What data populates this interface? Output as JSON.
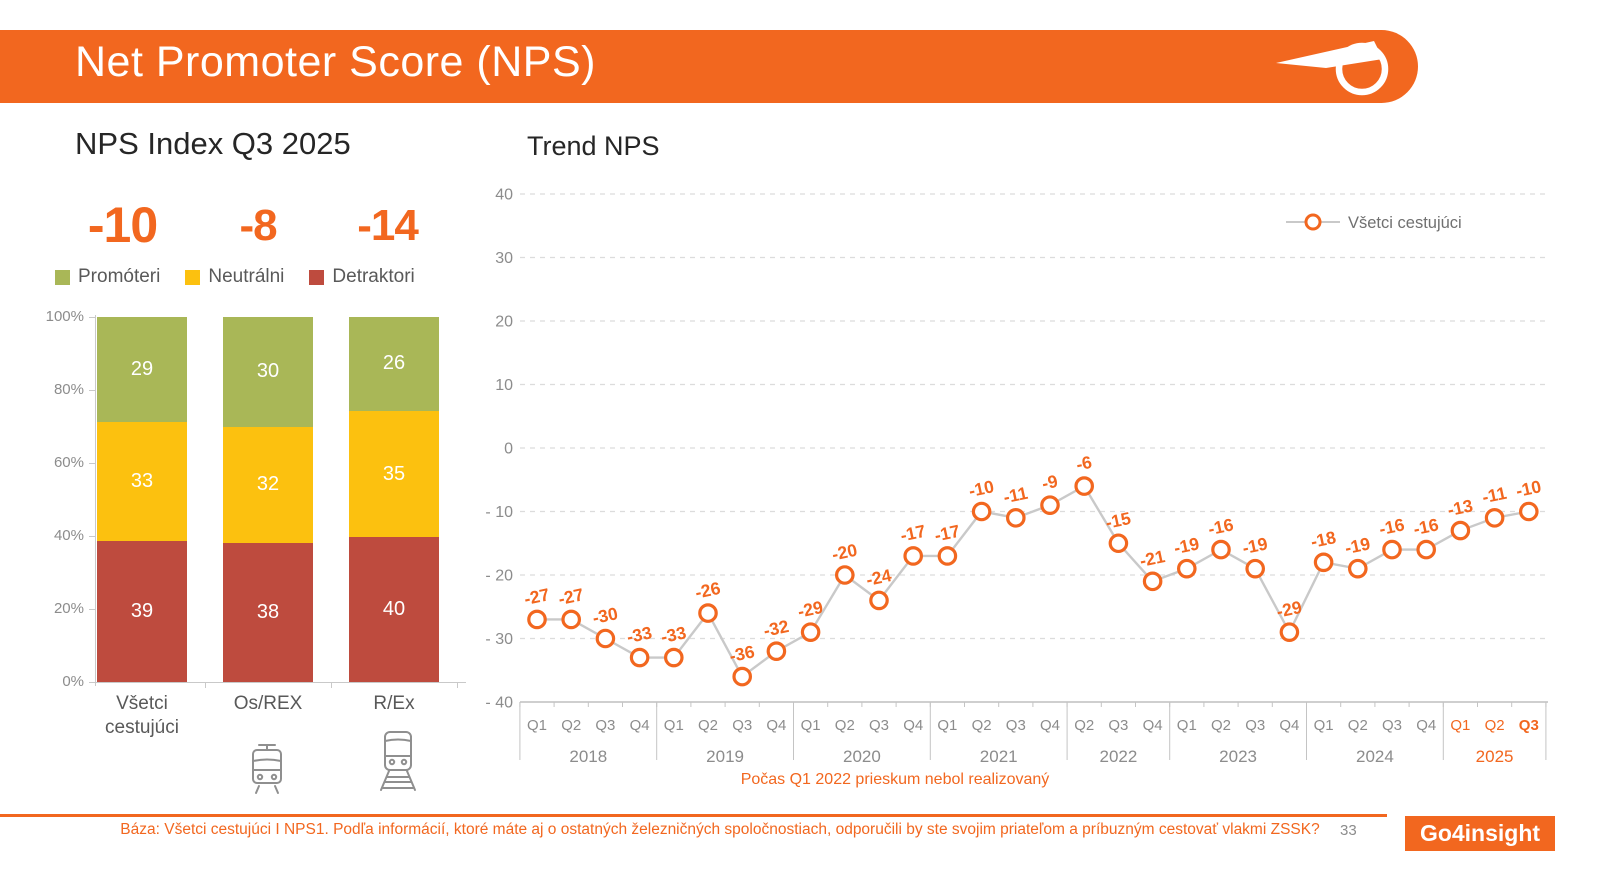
{
  "header": {
    "title": "Net Promoter Score (NPS)",
    "logo": "zssk-swoosh-logo"
  },
  "colors": {
    "accent_orange": "#F2671F",
    "promoters_green": "#A9B757",
    "neutrals_yellow": "#FCC10F",
    "detractors_red": "#BE4B3E",
    "line_gray": "#C9C9C9",
    "text_gray": "#8c8c8c"
  },
  "chart_data": [
    {
      "type": "bar",
      "stacked": true,
      "title": "NPS Index Q3 2025",
      "categories": [
        "Všetci cestujúci",
        "Os/REX",
        "R/Ex"
      ],
      "series": [
        {
          "name": "Detraktori",
          "color": "#BE4B3E",
          "values": [
            39,
            38,
            40
          ]
        },
        {
          "name": "Neutrálni",
          "color": "#FCC10F",
          "values": [
            33,
            32,
            35
          ]
        },
        {
          "name": "Promóteri",
          "color": "#A9B757",
          "values": [
            29,
            30,
            26
          ]
        }
      ],
      "legend": [
        {
          "label": "Promóteri",
          "color": "#A9B757"
        },
        {
          "label": "Neutrálni",
          "color": "#FCC10F"
        },
        {
          "label": "Detraktori",
          "color": "#BE4B3E"
        }
      ],
      "nps_labels": [
        "-10",
        "-8",
        "-14"
      ],
      "yticks": [
        "0%",
        "20%",
        "40%",
        "60%",
        "80%",
        "100%"
      ],
      "ylim": [
        0,
        100
      ],
      "category_icons": [
        null,
        "tram-icon",
        "train-icon"
      ]
    },
    {
      "type": "line",
      "title": "Trend NPS",
      "series_name": "Všetci cestujúci",
      "legend_position": "top-right",
      "grid": "horizontal-dashed",
      "ylim": [
        -40,
        40
      ],
      "ytick_step": 10,
      "yticks": [
        40,
        30,
        20,
        10,
        0,
        -10,
        -20,
        -30,
        -40
      ],
      "groups": [
        {
          "year": "2018",
          "quarters": [
            "Q1",
            "Q2",
            "Q3",
            "Q4"
          ],
          "values": [
            -27,
            -27,
            -30,
            -33
          ]
        },
        {
          "year": "2019",
          "quarters": [
            "Q1",
            "Q2",
            "Q3",
            "Q4"
          ],
          "values": [
            -33,
            -26,
            -36,
            -32
          ]
        },
        {
          "year": "2020",
          "quarters": [
            "Q1",
            "Q2",
            "Q3",
            "Q4"
          ],
          "values": [
            -29,
            -20,
            -24,
            -17
          ]
        },
        {
          "year": "2021",
          "quarters": [
            "Q1",
            "Q2",
            "Q3",
            "Q4"
          ],
          "values": [
            -17,
            -10,
            -11,
            -9
          ]
        },
        {
          "year": "2022",
          "quarters": [
            "Q2",
            "Q3",
            "Q4"
          ],
          "values": [
            -6,
            -15,
            -21
          ]
        },
        {
          "year": "2023",
          "quarters": [
            "Q1",
            "Q2",
            "Q3",
            "Q4"
          ],
          "values": [
            -19,
            -16,
            -19,
            -29
          ]
        },
        {
          "year": "2024",
          "quarters": [
            "Q1",
            "Q2",
            "Q3",
            "Q4"
          ],
          "values": [
            -18,
            -19,
            -16,
            -16
          ]
        },
        {
          "year": "2025",
          "quarters": [
            "Q1",
            "Q2",
            "Q3"
          ],
          "values": [
            -13,
            -11,
            -10
          ],
          "highlight": true,
          "bold_quarter": "Q3"
        }
      ],
      "note": "Počas Q1 2022 prieskum nebol realizovaný"
    }
  ],
  "footer": {
    "base_text": "Báza: Všetci cestujúci I NPS1. Podľa informácií, ktoré máte aj o ostatných železničných spoločnostiach, odporučili by ste svojim priateľom a príbuzným cestovať vlakmi ZSSK?",
    "page_number": "33",
    "logo_text": "Go4insight"
  }
}
